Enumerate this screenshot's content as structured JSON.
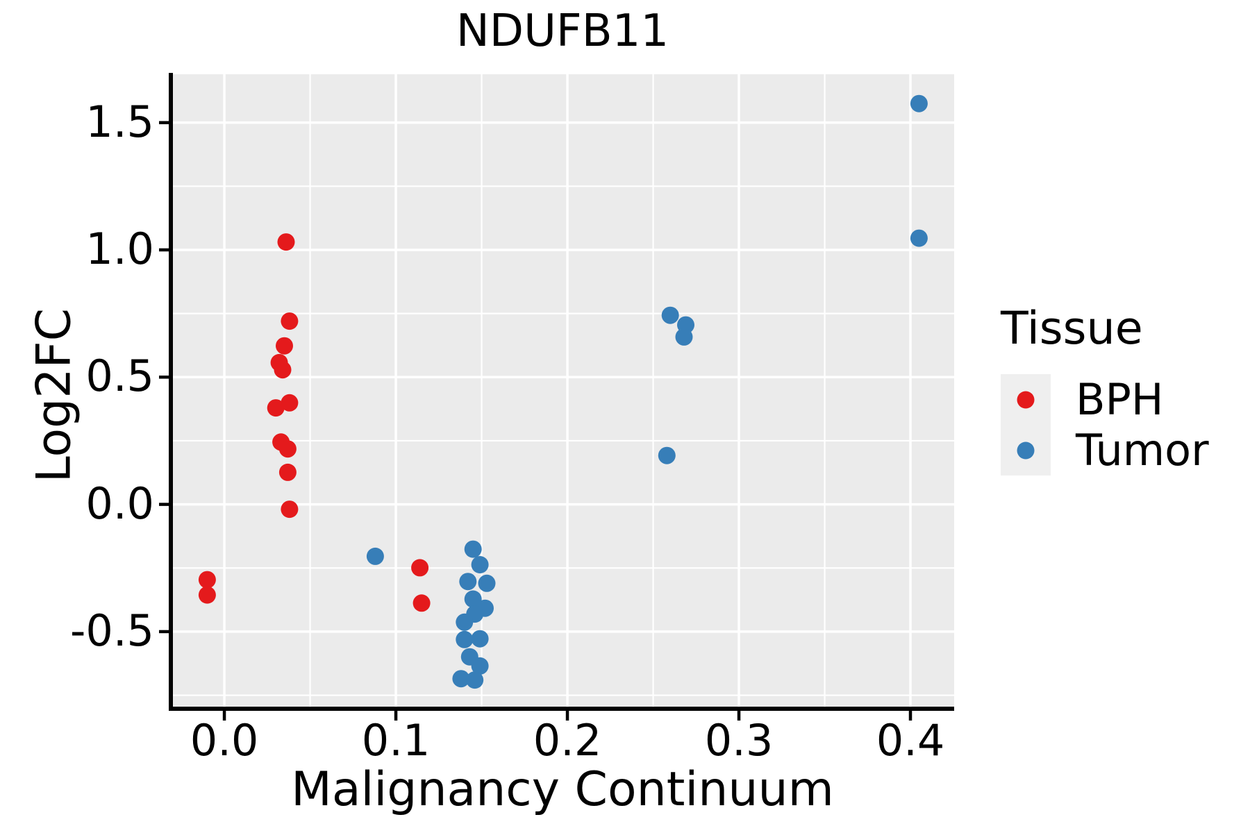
{
  "chart": {
    "title": "NDUFB11",
    "xlabel": "Malignancy Continuum",
    "ylabel": "Log2FC"
  },
  "legend": {
    "title": "Tissue",
    "items": [
      {
        "label": "BPH",
        "color": "#E41A1C"
      },
      {
        "label": "Tumor",
        "color": "#377EB8"
      }
    ]
  },
  "chart_data": {
    "type": "scatter",
    "title": "NDUFB11",
    "xlabel": "Malignancy Continuum",
    "ylabel": "Log2FC",
    "xlim": [
      -0.0312,
      0.4255
    ],
    "ylim": [
      -0.803,
      1.69
    ],
    "x_ticks": [
      0.0,
      0.1,
      0.2,
      0.3,
      0.4
    ],
    "x_tick_labels": [
      "0.0",
      "0.1",
      "0.2",
      "0.3",
      "0.4"
    ],
    "y_ticks": [
      -0.5,
      0.0,
      0.5,
      1.0,
      1.5
    ],
    "y_tick_labels": [
      "-0.5",
      "0.0",
      "0.5",
      "1.0",
      "1.5"
    ],
    "x_minor_ticks": [
      0.05,
      0.15,
      0.25,
      0.35
    ],
    "y_minor_ticks": [
      -0.75,
      -0.25,
      0.25,
      0.75,
      1.25
    ],
    "grid": true,
    "legend_position": "right",
    "panel_bg": "#EBEBEB",
    "grid_color": "#FFFFFF",
    "axis_color": "#000000",
    "marker_radius": 12.5,
    "series": [
      {
        "name": "BPH",
        "color": "#E41A1C",
        "points": [
          [
            -0.01,
            -0.296
          ],
          [
            -0.01,
            -0.356
          ],
          [
            0.036,
            1.031
          ],
          [
            0.038,
            0.72
          ],
          [
            0.035,
            0.623
          ],
          [
            0.032,
            0.557
          ],
          [
            0.034,
            0.529
          ],
          [
            0.038,
            0.399
          ],
          [
            0.03,
            0.379
          ],
          [
            0.033,
            0.245
          ],
          [
            0.037,
            0.218
          ],
          [
            0.037,
            0.126
          ],
          [
            0.038,
            -0.019
          ],
          [
            0.114,
            -0.249
          ],
          [
            0.115,
            -0.388
          ]
        ]
      },
      {
        "name": "Tumor",
        "color": "#377EB8",
        "points": [
          [
            0.088,
            -0.204
          ],
          [
            0.145,
            -0.176
          ],
          [
            0.149,
            -0.237
          ],
          [
            0.142,
            -0.303
          ],
          [
            0.153,
            -0.31
          ],
          [
            0.145,
            -0.372
          ],
          [
            0.152,
            -0.408
          ],
          [
            0.146,
            -0.431
          ],
          [
            0.14,
            -0.463
          ],
          [
            0.14,
            -0.531
          ],
          [
            0.149,
            -0.528
          ],
          [
            0.143,
            -0.599
          ],
          [
            0.149,
            -0.635
          ],
          [
            0.138,
            -0.685
          ],
          [
            0.146,
            -0.69
          ],
          [
            0.26,
            0.743
          ],
          [
            0.269,
            0.705
          ],
          [
            0.268,
            0.658
          ],
          [
            0.258,
            0.192
          ],
          [
            0.405,
            1.575
          ],
          [
            0.405,
            1.046
          ]
        ]
      }
    ]
  }
}
